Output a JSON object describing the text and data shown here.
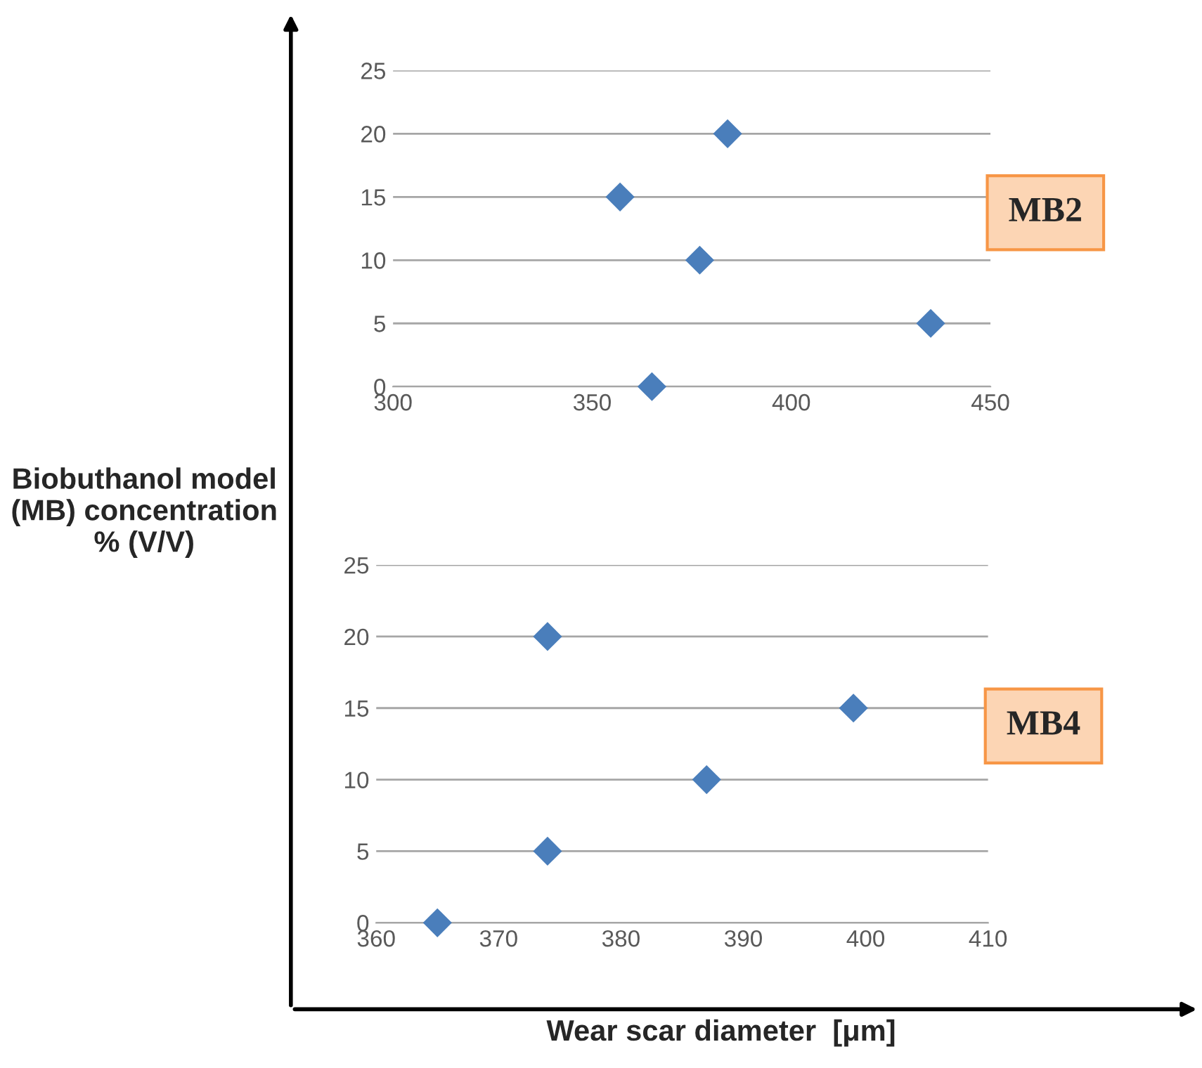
{
  "chart_data": [
    {
      "type": "scatter",
      "x": [
        365,
        435,
        377,
        357,
        384
      ],
      "values": [
        0,
        5,
        10,
        15,
        20
      ],
      "color": "#4a7ebb",
      "marker": "diamond",
      "xlim": [
        300,
        450
      ],
      "xticks": [
        300,
        350,
        400,
        450
      ],
      "ylim": [
        0,
        25
      ],
      "yticks": [
        0,
        5,
        10,
        15,
        20,
        25
      ],
      "grid": "y",
      "annotations": [
        "MB2"
      ],
      "ylabel": "Biobuthanol model (MB) concentration % (V/V)"
    },
    {
      "type": "scatter",
      "x": [
        365,
        374,
        387,
        399,
        374
      ],
      "values": [
        0,
        5,
        10,
        15,
        20
      ],
      "color": "#4a7ebb",
      "marker": "diamond",
      "xlim": [
        360,
        410
      ],
      "xticks": [
        360,
        370,
        380,
        390,
        400,
        410
      ],
      "ylim": [
        0,
        25
      ],
      "yticks": [
        0,
        5,
        10,
        15,
        20,
        25
      ],
      "grid": "y",
      "annotations": [
        "MB4"
      ],
      "xlabel": "Wear scar diameter  [μm]"
    }
  ]
}
